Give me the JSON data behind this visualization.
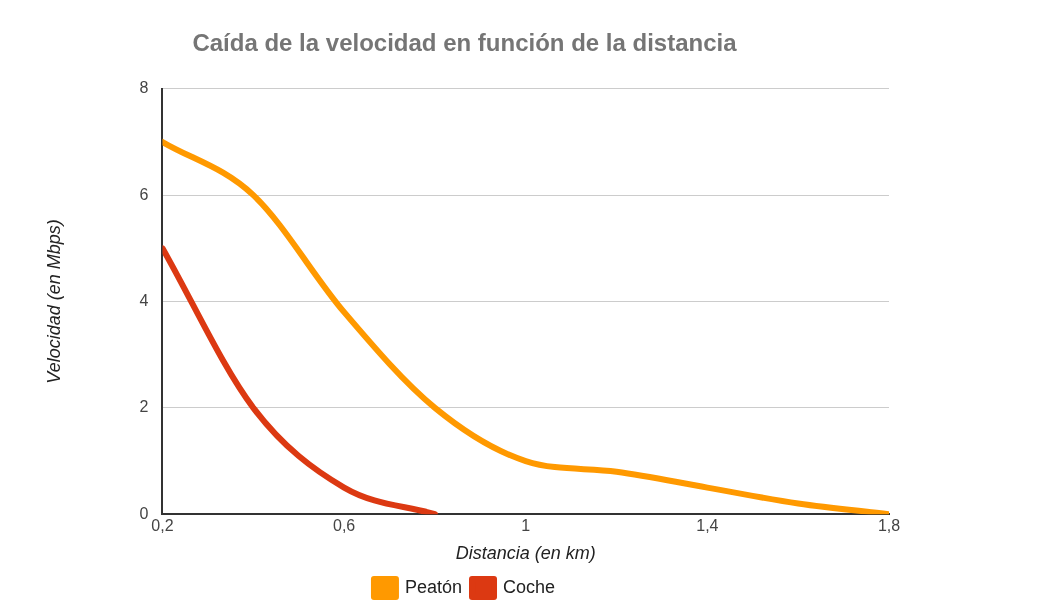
{
  "chart_data": {
    "type": "line",
    "title": "Caída de la velocidad en función de la distancia",
    "xlabel": "Distancia (en km)",
    "ylabel": "Velocidad (en Mbps)",
    "x": [
      0.2,
      0.4,
      0.6,
      0.8,
      1.0,
      1.2,
      1.4,
      1.6,
      1.8
    ],
    "series": [
      {
        "name": "Peatón",
        "color": "#ff9900",
        "values": [
          7,
          6,
          3.8,
          2,
          1,
          0.8,
          0.5,
          0.2,
          0
        ]
      },
      {
        "name": "Coche",
        "color": "#dc3912",
        "values": [
          5,
          2,
          0.5,
          0,
          null,
          null,
          null,
          null,
          null
        ]
      }
    ],
    "xlim": [
      0.2,
      1.8
    ],
    "xticks": [
      {
        "value": 0.2,
        "label": "0,2"
      },
      {
        "value": 0.6,
        "label": "0,6"
      },
      1,
      {
        "value": 1.4,
        "label": "1,4"
      },
      {
        "value": 1.8,
        "label": "1,8"
      }
    ],
    "ylim": [
      0,
      8
    ],
    "yticks": [
      0,
      2,
      4,
      6,
      8
    ],
    "grid": "y",
    "legend": "bottom",
    "marker": "none",
    "line_style": "solid"
  }
}
